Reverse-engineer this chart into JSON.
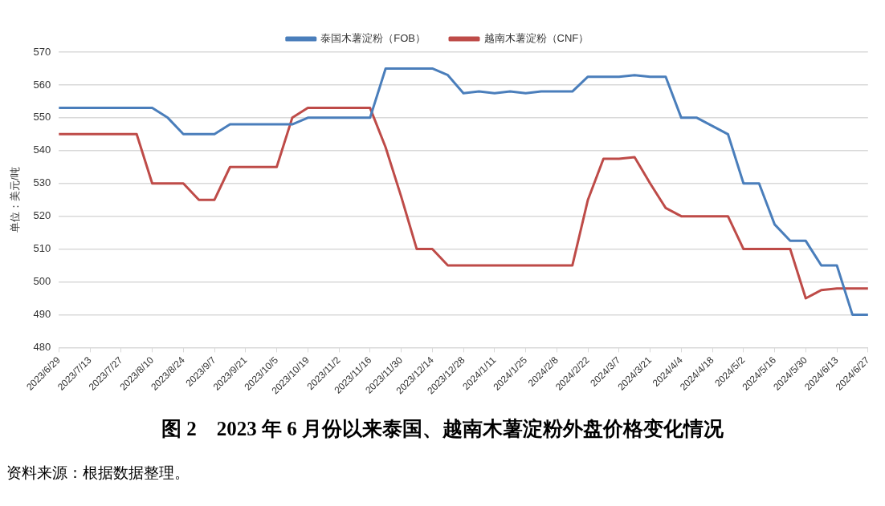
{
  "chart_data": {
    "type": "line",
    "title": "图 2　2023 年 6 月份以来泰国、越南木薯淀粉外盘价格变化情况",
    "ylabel": "单位：美元/吨",
    "annotations": [
      "资料来源：根据数据整理。"
    ],
    "categories": [
      "2023/6/29",
      null,
      "2023/7/13",
      null,
      "2023/7/27",
      null,
      "2023/8/10",
      null,
      "2023/8/24",
      null,
      "2023/9/7",
      null,
      "2023/9/21",
      null,
      "2023/10/5",
      null,
      "2023/10/19",
      null,
      "2023/11/2",
      null,
      "2023/11/16",
      null,
      "2023/11/30",
      null,
      "2023/12/14",
      null,
      "2023/12/28",
      null,
      "2024/1/11",
      null,
      "2024/1/25",
      null,
      "2024/2/8",
      null,
      "2024/2/22",
      null,
      "2024/3/7",
      null,
      "2024/3/21",
      null,
      "2024/4/4",
      null,
      "2024/4/18",
      null,
      "2024/5/2",
      null,
      "2024/5/16",
      null,
      "2024/5/30",
      null,
      "2024/6/13",
      null,
      "2024/6/27"
    ],
    "series": [
      {
        "name": "泰国木薯淀粉（FOB）",
        "color": "#4a7ebb",
        "values": [
          553,
          553,
          553,
          553,
          553,
          553,
          553,
          550,
          545,
          545,
          545,
          548,
          548,
          548,
          548,
          548,
          550,
          550,
          550,
          550,
          550,
          565,
          565,
          565,
          565,
          563,
          557.5,
          558,
          557.5,
          558,
          557.5,
          558,
          558,
          558,
          562.5,
          562.5,
          562.5,
          563,
          562.5,
          562.5,
          550,
          550,
          547.5,
          545,
          530,
          530,
          517.5,
          512.5,
          512.5,
          505,
          505,
          490,
          490
        ]
      },
      {
        "name": "越南木薯淀粉（CNF）",
        "color": "#be4b48",
        "values": [
          545,
          545,
          545,
          545,
          545,
          545,
          530,
          530,
          530,
          525,
          525,
          535,
          535,
          535,
          535,
          550,
          553,
          553,
          553,
          553,
          553,
          541,
          526,
          510,
          510,
          505,
          505,
          505,
          505,
          505,
          505,
          505,
          505,
          505,
          525,
          537.5,
          537.5,
          538,
          530,
          522.5,
          520,
          520,
          520,
          520,
          510,
          510,
          510,
          510,
          495,
          497.5,
          498,
          498,
          498
        ]
      }
    ],
    "ylim": [
      480,
      570
    ],
    "yticks": [
      480,
      490,
      500,
      510,
      520,
      530,
      540,
      550,
      560,
      570
    ],
    "grid": "y",
    "legend": "top",
    "marker": "none",
    "line_style": "solid"
  }
}
